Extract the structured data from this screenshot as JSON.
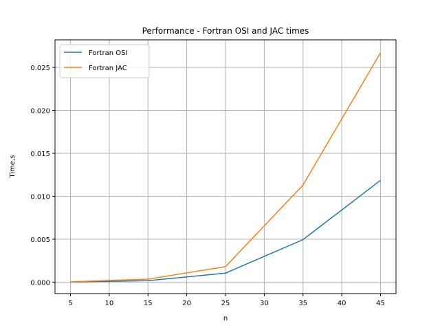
{
  "chart_data": {
    "type": "line",
    "title": "Performance - Fortran OSI and JAC times",
    "xlabel": "n",
    "ylabel": "Time,s",
    "x": [
      5,
      15,
      25,
      35,
      45
    ],
    "xticks": [
      5,
      10,
      15,
      20,
      25,
      30,
      35,
      40,
      45
    ],
    "xtick_labels": [
      "5",
      "10",
      "15",
      "20",
      "25",
      "30",
      "35",
      "40",
      "45"
    ],
    "yticks": [
      0.0,
      0.005,
      0.01,
      0.015,
      0.02,
      0.025
    ],
    "ytick_labels": [
      "0.000",
      "0.005",
      "0.010",
      "0.015",
      "0.020",
      "0.025"
    ],
    "xlim": [
      3.0,
      47.0
    ],
    "ylim": [
      -0.00133,
      0.0282
    ],
    "grid": true,
    "legend_position": "top-left",
    "series": [
      {
        "name": "Fortran OSI",
        "color": "#1f77b4",
        "values": [
          2e-05,
          0.00017,
          0.00105,
          0.00495,
          0.01185
        ]
      },
      {
        "name": "Fortran JAC",
        "color": "#ff7f0e",
        "values": [
          4e-05,
          0.00035,
          0.0018,
          0.0113,
          0.0267
        ]
      }
    ]
  }
}
